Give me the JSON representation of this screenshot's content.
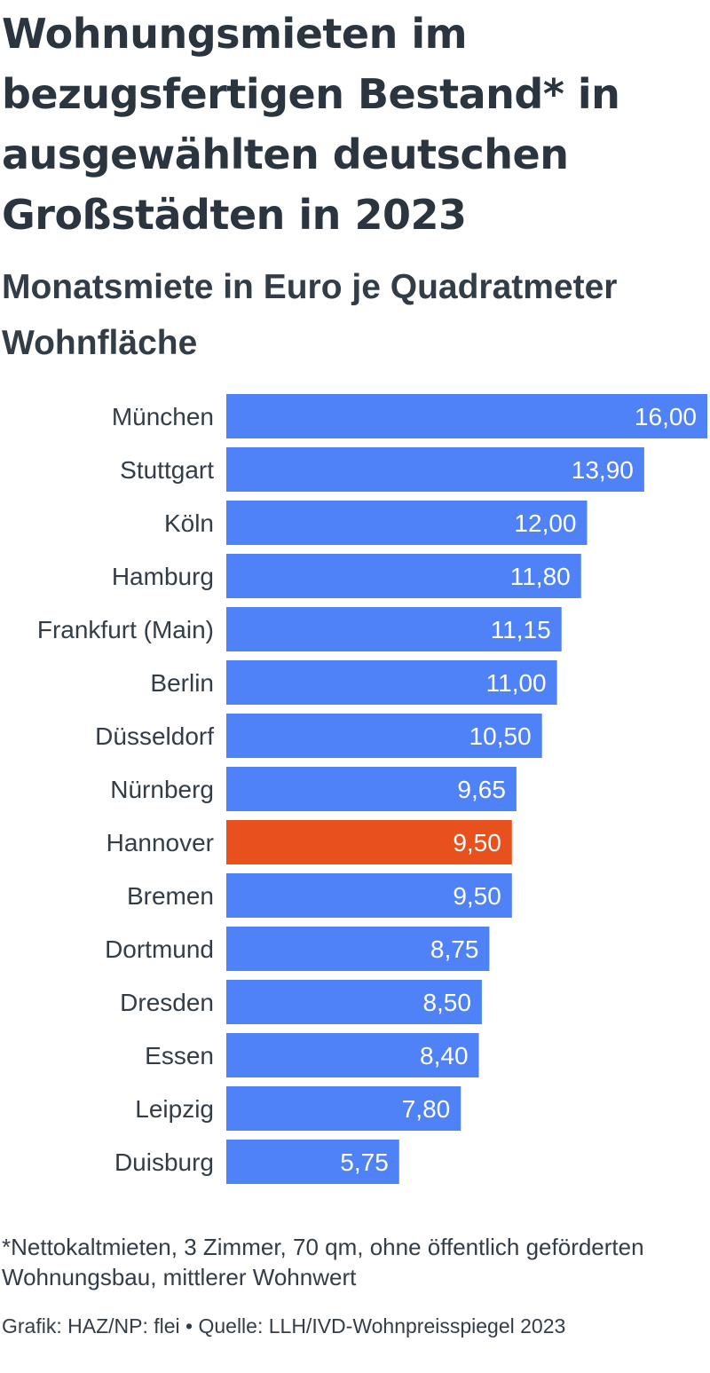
{
  "header": {
    "title": "Wohnungsmieten im bezugsfertigen Bestand* in ausgewählten deutschen Großstädten in 2023",
    "subtitle": "Monatsmiete in Euro je Quadratmeter Wohnfläche"
  },
  "chart_data": {
    "type": "bar",
    "orientation": "horizontal",
    "categories": [
      "München",
      "Stuttgart",
      "Köln",
      "Hamburg",
      "Frankfurt (Main)",
      "Berlin",
      "Düsseldorf",
      "Nürnberg",
      "Hannover",
      "Bremen",
      "Dortmund",
      "Dresden",
      "Essen",
      "Leipzig",
      "Duisburg"
    ],
    "values": [
      16.0,
      13.9,
      12.0,
      11.8,
      11.15,
      11.0,
      10.5,
      9.65,
      9.5,
      9.5,
      8.75,
      8.5,
      8.4,
      7.8,
      5.75
    ],
    "value_labels": [
      "16,00",
      "13,90",
      "12,00",
      "11,80",
      "11,15",
      "11,00",
      "10,50",
      "9,65",
      "9,50",
      "9,50",
      "8,75",
      "8,50",
      "8,40",
      "7,80",
      "5,75"
    ],
    "highlight": "Hannover",
    "colors": {
      "bar": "#4f82f7",
      "highlight": "#e8501e"
    },
    "xlim": [
      0,
      16
    ],
    "grid": false,
    "legend": "none"
  },
  "footer": {
    "note": "*Nettokaltmieten, 3 Zimmer, 70 qm, ohne öffentlich geförderten Wohnungsbau, mittlerer Wohnwert",
    "source": "Grafik: HAZ/NP: flei • Quelle: LLH/IVD-Wohnpreisspiegel 2023"
  }
}
